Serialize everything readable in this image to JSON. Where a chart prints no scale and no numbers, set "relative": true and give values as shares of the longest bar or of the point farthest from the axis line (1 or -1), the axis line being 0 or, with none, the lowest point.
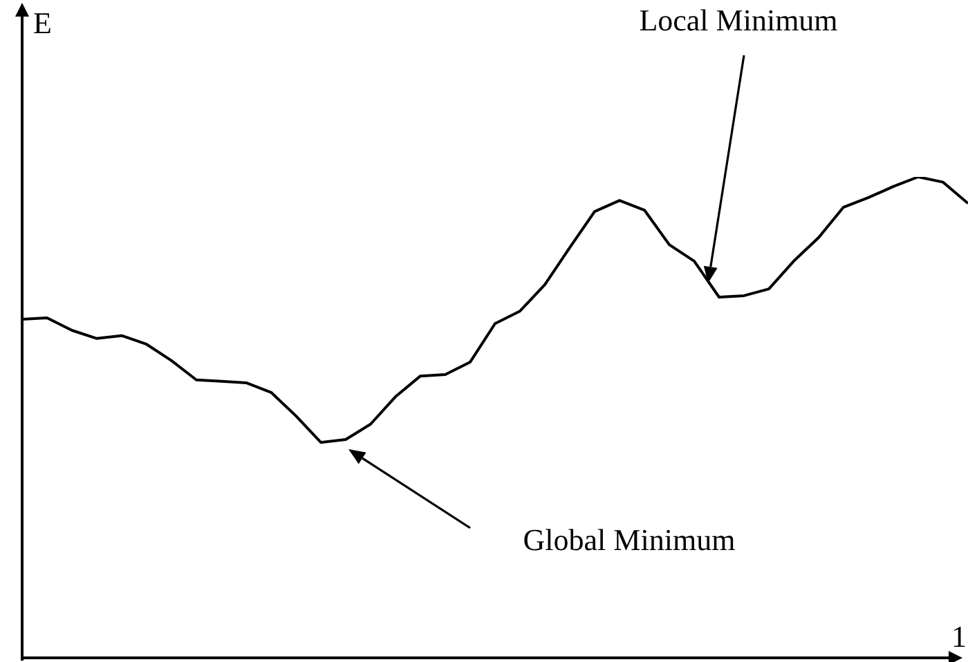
{
  "chart_data": {
    "type": "line",
    "relative": true,
    "ylabel": "E",
    "xlabel": "1",
    "marker": "none",
    "categories": [
      null,
      null,
      null,
      null,
      null,
      null,
      null,
      null,
      null,
      null,
      null,
      null,
      null,
      null,
      null,
      null,
      null,
      null,
      null,
      null,
      null,
      null,
      null,
      null,
      null,
      null,
      null,
      null,
      null,
      null,
      null,
      null,
      null,
      null,
      null,
      null,
      null,
      null,
      null
    ],
    "series": [
      {
        "color": "#000000",
        "values": [
          0.704,
          0.707,
          0.681,
          0.664,
          0.67,
          0.652,
          0.618,
          0.578,
          0.575,
          0.572,
          0.552,
          0.503,
          0.448,
          0.454,
          0.486,
          0.543,
          0.586,
          0.589,
          0.615,
          0.695,
          0.721,
          0.776,
          0.853,
          0.928,
          0.951,
          0.931,
          0.859,
          0.825,
          0.75,
          0.753,
          0.767,
          0.825,
          0.874,
          0.937,
          0.957,
          0.98,
          1,
          0.989,
          0.945
        ]
      }
    ],
    "annotations": [
      "Local Minimum",
      "Global Minimum"
    ]
  }
}
